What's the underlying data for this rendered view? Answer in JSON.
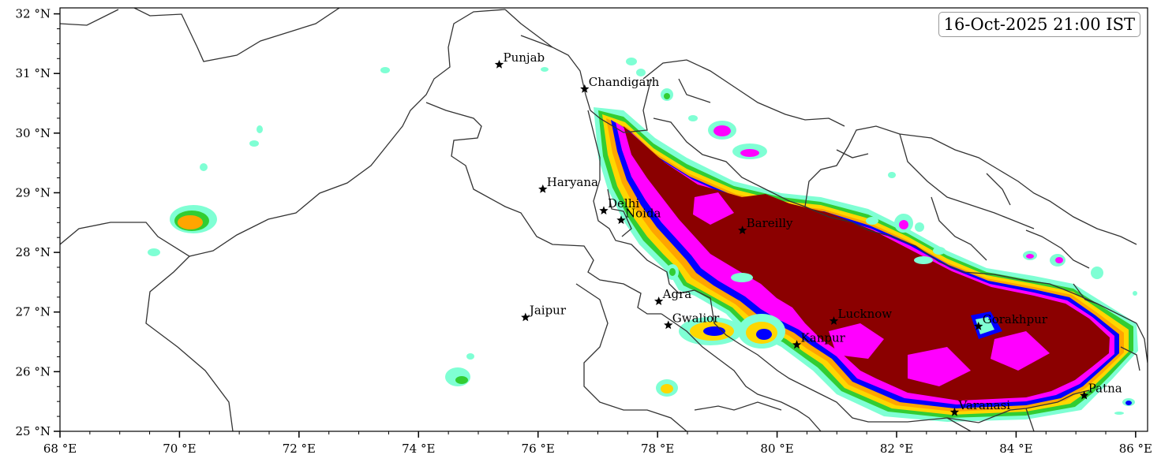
{
  "timestamp": "16-Oct-2025 21:00 IST",
  "axes": {
    "x_ticks": [
      "68 °E",
      "70 °E",
      "72 °E",
      "74 °E",
      "76 °E",
      "78 °E",
      "80 °E",
      "82 °E",
      "84 °E",
      "86 °E"
    ],
    "x_values": [
      68,
      70,
      72,
      74,
      76,
      78,
      80,
      82,
      84,
      86
    ],
    "y_ticks": [
      "25 °N",
      "26 °N",
      "27 °N",
      "28 °N",
      "29 °N",
      "30 °N",
      "31 °N",
      "32 °N"
    ],
    "y_values": [
      25,
      26,
      27,
      28,
      29,
      30,
      31,
      32
    ],
    "lon_range": [
      68,
      86.2
    ],
    "lat_range": [
      25,
      32.1
    ]
  },
  "places": [
    {
      "name": "Punjab",
      "lon": 75.35,
      "lat": 31.15
    },
    {
      "name": "Chandigarh",
      "lon": 76.78,
      "lat": 30.74
    },
    {
      "name": "Haryana",
      "lon": 76.08,
      "lat": 29.06
    },
    {
      "name": "Delhi",
      "lon": 77.1,
      "lat": 28.7
    },
    {
      "name": "Noida",
      "lon": 77.39,
      "lat": 28.54
    },
    {
      "name": "Bareilly",
      "lon": 79.42,
      "lat": 28.37
    },
    {
      "name": "Agra",
      "lon": 78.02,
      "lat": 27.18
    },
    {
      "name": "Jaipur",
      "lon": 75.79,
      "lat": 26.91
    },
    {
      "name": "Gwalior",
      "lon": 78.18,
      "lat": 26.78
    },
    {
      "name": "Lucknow",
      "lon": 80.95,
      "lat": 26.85
    },
    {
      "name": "Kanpur",
      "lon": 80.33,
      "lat": 26.45
    },
    {
      "name": "Gorakhpur",
      "lon": 83.37,
      "lat": 26.76
    },
    {
      "name": "Varanasi",
      "lon": 82.97,
      "lat": 25.32
    },
    {
      "name": "Patna",
      "lon": 85.14,
      "lat": 25.6
    }
  ],
  "colors": {
    "level1": "#7fffd4",
    "level2": "#32cd32",
    "level3": "#ffd700",
    "level4": "#ffa500",
    "level5": "#0000ff",
    "level6": "#ff00ff",
    "level7": "#8b0000",
    "border": "#333333"
  }
}
